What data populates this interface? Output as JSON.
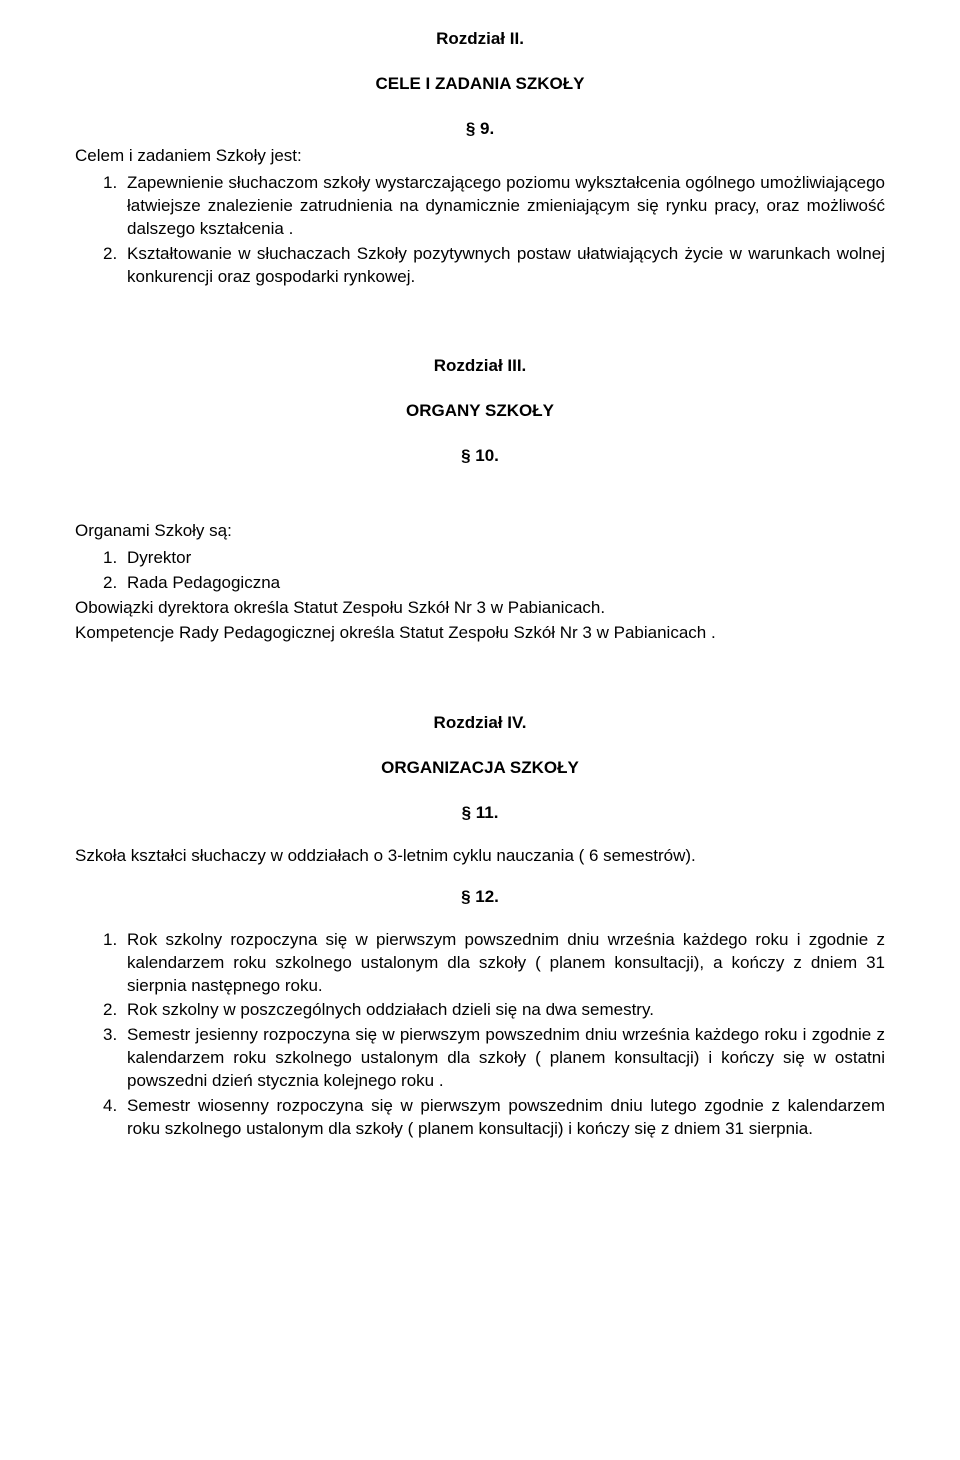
{
  "chapter2": {
    "heading": "Rozdział II.",
    "title": "CELE I  ZADANIA SZKOŁY",
    "para9": {
      "number": "§  9.",
      "intro": "Celem i  zadaniem Szkoły jest:",
      "items": [
        {
          "marker": "1.",
          "text": "Zapewnienie słuchaczom szkoły wystarczającego poziomu wykształcenia ogólnego umożliwiającego łatwiejsze znalezienie zatrudnienia na dynamicznie zmieniającym się rynku pracy, oraz możliwość dalszego kształcenia ."
        },
        {
          "marker": "2.",
          "text": "Kształtowanie w słuchaczach Szkoły pozytywnych postaw ułatwiających życie w  warunkach wolnej konkurencji oraz gospodarki rynkowej."
        }
      ]
    }
  },
  "chapter3": {
    "heading": "Rozdział III.",
    "title": "ORGANY SZKOŁY",
    "para10": {
      "number": "§  10.",
      "intro": "Organami Szkoły są:",
      "items": [
        {
          "marker": "1.",
          "text": "Dyrektor"
        },
        {
          "marker": "2.",
          "text": "Rada Pedagogiczna"
        }
      ],
      "after1": "Obowiązki dyrektora określa Statut Zespołu Szkół Nr 3   w Pabianicach.",
      "after2": "Kompetencje Rady Pedagogicznej określa Statut Zespołu Szkół Nr 3 w Pabianicach ."
    }
  },
  "chapter4": {
    "heading": "Rozdział IV.",
    "title": "ORGANIZACJA SZKOŁY",
    "para11": {
      "number": "§  11.",
      "text": "Szkoła kształci słuchaczy w   oddziałach o 3-letnim cyklu nauczania ( 6 semestrów)."
    },
    "para12": {
      "number": "§  12.",
      "items": [
        {
          "marker": "1.",
          "text": "Rok szkolny rozpoczyna się w pierwszym powszednim dniu września każdego roku i zgodnie z kalendarzem roku szkolnego ustalonym dla szkoły ( planem konsultacji), a kończy z dniem 31 sierpnia następnego roku."
        },
        {
          "marker": "2.",
          "text": "Rok szkolny w   poszczególnych oddziałach dzieli się na dwa semestry."
        },
        {
          "marker": "3.",
          "text": "Semestr jesienny rozpoczyna się w pierwszym powszednim dniu września każdego roku i zgodnie z kalendarzem roku szkolnego ustalonym dla szkoły ( planem konsultacji) i kończy się w ostatni powszedni dzień stycznia kolejnego roku ."
        },
        {
          "marker": "4.",
          "text": "Semestr wiosenny rozpoczyna się w pierwszym powszednim dniu lutego zgodnie z kalendarzem roku szkolnego ustalonym dla szkoły ( planem konsultacji) i kończy się z dniem 31 sierpnia."
        }
      ]
    }
  }
}
